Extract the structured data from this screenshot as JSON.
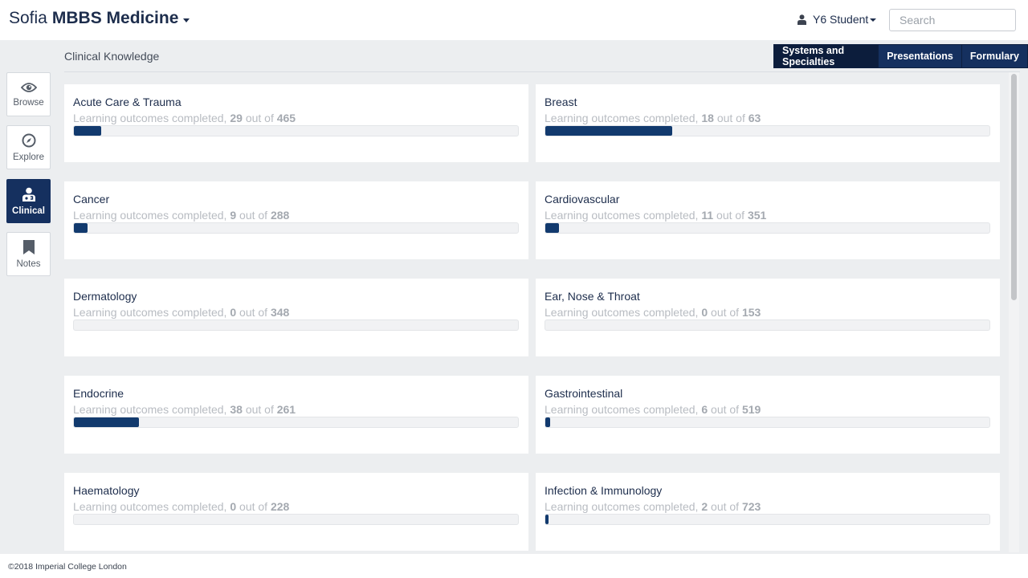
{
  "header": {
    "brand_prefix": "Sofia",
    "brand_name": "MBBS Medicine",
    "user_label": "Y6 Student",
    "search_placeholder": "Search"
  },
  "sidebar": {
    "items": [
      {
        "label": "Browse",
        "icon": "eye-icon",
        "active": false
      },
      {
        "label": "Explore",
        "icon": "compass-icon",
        "active": false
      },
      {
        "label": "Clinical",
        "icon": "doctor-icon",
        "active": true
      },
      {
        "label": "Notes",
        "icon": "bookmark-icon",
        "active": false
      }
    ]
  },
  "section": {
    "title": "Clinical Knowledge",
    "tabs": [
      "Systems and Specialties",
      "Presentations",
      "Formulary"
    ]
  },
  "progress_prefix": "Learning outcomes completed,",
  "progress_mid": "out of",
  "cards": [
    {
      "name": "Acute Care & Trauma",
      "completed": "29",
      "total": "465"
    },
    {
      "name": "Breast",
      "completed": "18",
      "total": "63"
    },
    {
      "name": "Cancer",
      "completed": "9",
      "total": "288"
    },
    {
      "name": "Cardiovascular",
      "completed": "11",
      "total": "351"
    },
    {
      "name": "Dermatology",
      "completed": "0",
      "total": "348"
    },
    {
      "name": "Ear, Nose & Throat",
      "completed": "0",
      "total": "153"
    },
    {
      "name": "Endocrine",
      "completed": "38",
      "total": "261"
    },
    {
      "name": "Gastrointestinal",
      "completed": "6",
      "total": "519"
    },
    {
      "name": "Haematology",
      "completed": "0",
      "total": "228"
    },
    {
      "name": "Infection & Immunology",
      "completed": "2",
      "total": "723"
    }
  ],
  "footer": "©2018 Imperial College London",
  "colors": {
    "navy": "#15305f",
    "fill": "#123a6e",
    "background": "#eceef0"
  }
}
